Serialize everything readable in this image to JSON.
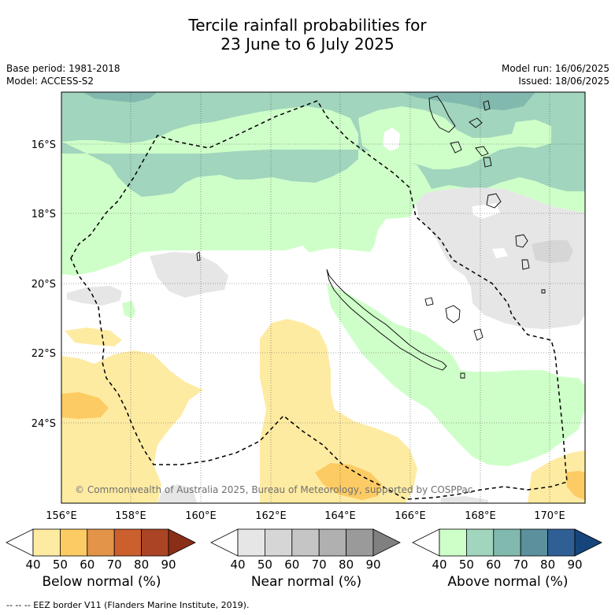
{
  "title_line1": "Tercile rainfall probabilities for",
  "title_line2": "23 June to 6 July 2025",
  "meta": {
    "base_period": "Base period: 1981-2018",
    "model": "Model: ACCESS-S2",
    "model_run": "Model run: 16/06/2025",
    "issued": "Issued: 18/06/2025"
  },
  "map": {
    "lon_labels": [
      "156°E",
      "158°E",
      "160°E",
      "162°E",
      "164°E",
      "166°E",
      "168°E",
      "170°E"
    ],
    "lat_labels": [
      "16°S",
      "18°S",
      "20°S",
      "22°S",
      "24°S"
    ],
    "copyright": "© Commonwealth of Australia 2025, Bureau of Meteorology, supported by COSPPac"
  },
  "colorbars": [
    {
      "label": "Below normal (%)",
      "ticks": [
        "40",
        "50",
        "60",
        "70",
        "80",
        "90"
      ],
      "colors": [
        "#ffffff",
        "#feeba2",
        "#fdcb63",
        "#e39448",
        "#cb5f2e",
        "#ab4424",
        "#8b2e17"
      ]
    },
    {
      "label": "Near normal (%)",
      "ticks": [
        "40",
        "50",
        "60",
        "70",
        "80",
        "90"
      ],
      "colors": [
        "#ffffff",
        "#e6e6e6",
        "#d6d6d6",
        "#c5c5c5",
        "#b0b0b0",
        "#9a9a9a",
        "#808080"
      ]
    },
    {
      "label": "Above normal (%)",
      "ticks": [
        "40",
        "50",
        "60",
        "70",
        "80",
        "90"
      ],
      "colors": [
        "#ffffff",
        "#cfffc9",
        "#a1d5bd",
        "#82b9ae",
        "#5b909c",
        "#2f5f95",
        "#15457a"
      ]
    }
  ],
  "footer": "-- -- -- EEZ border V11 (Flanders Marine Institute, 2019)."
}
